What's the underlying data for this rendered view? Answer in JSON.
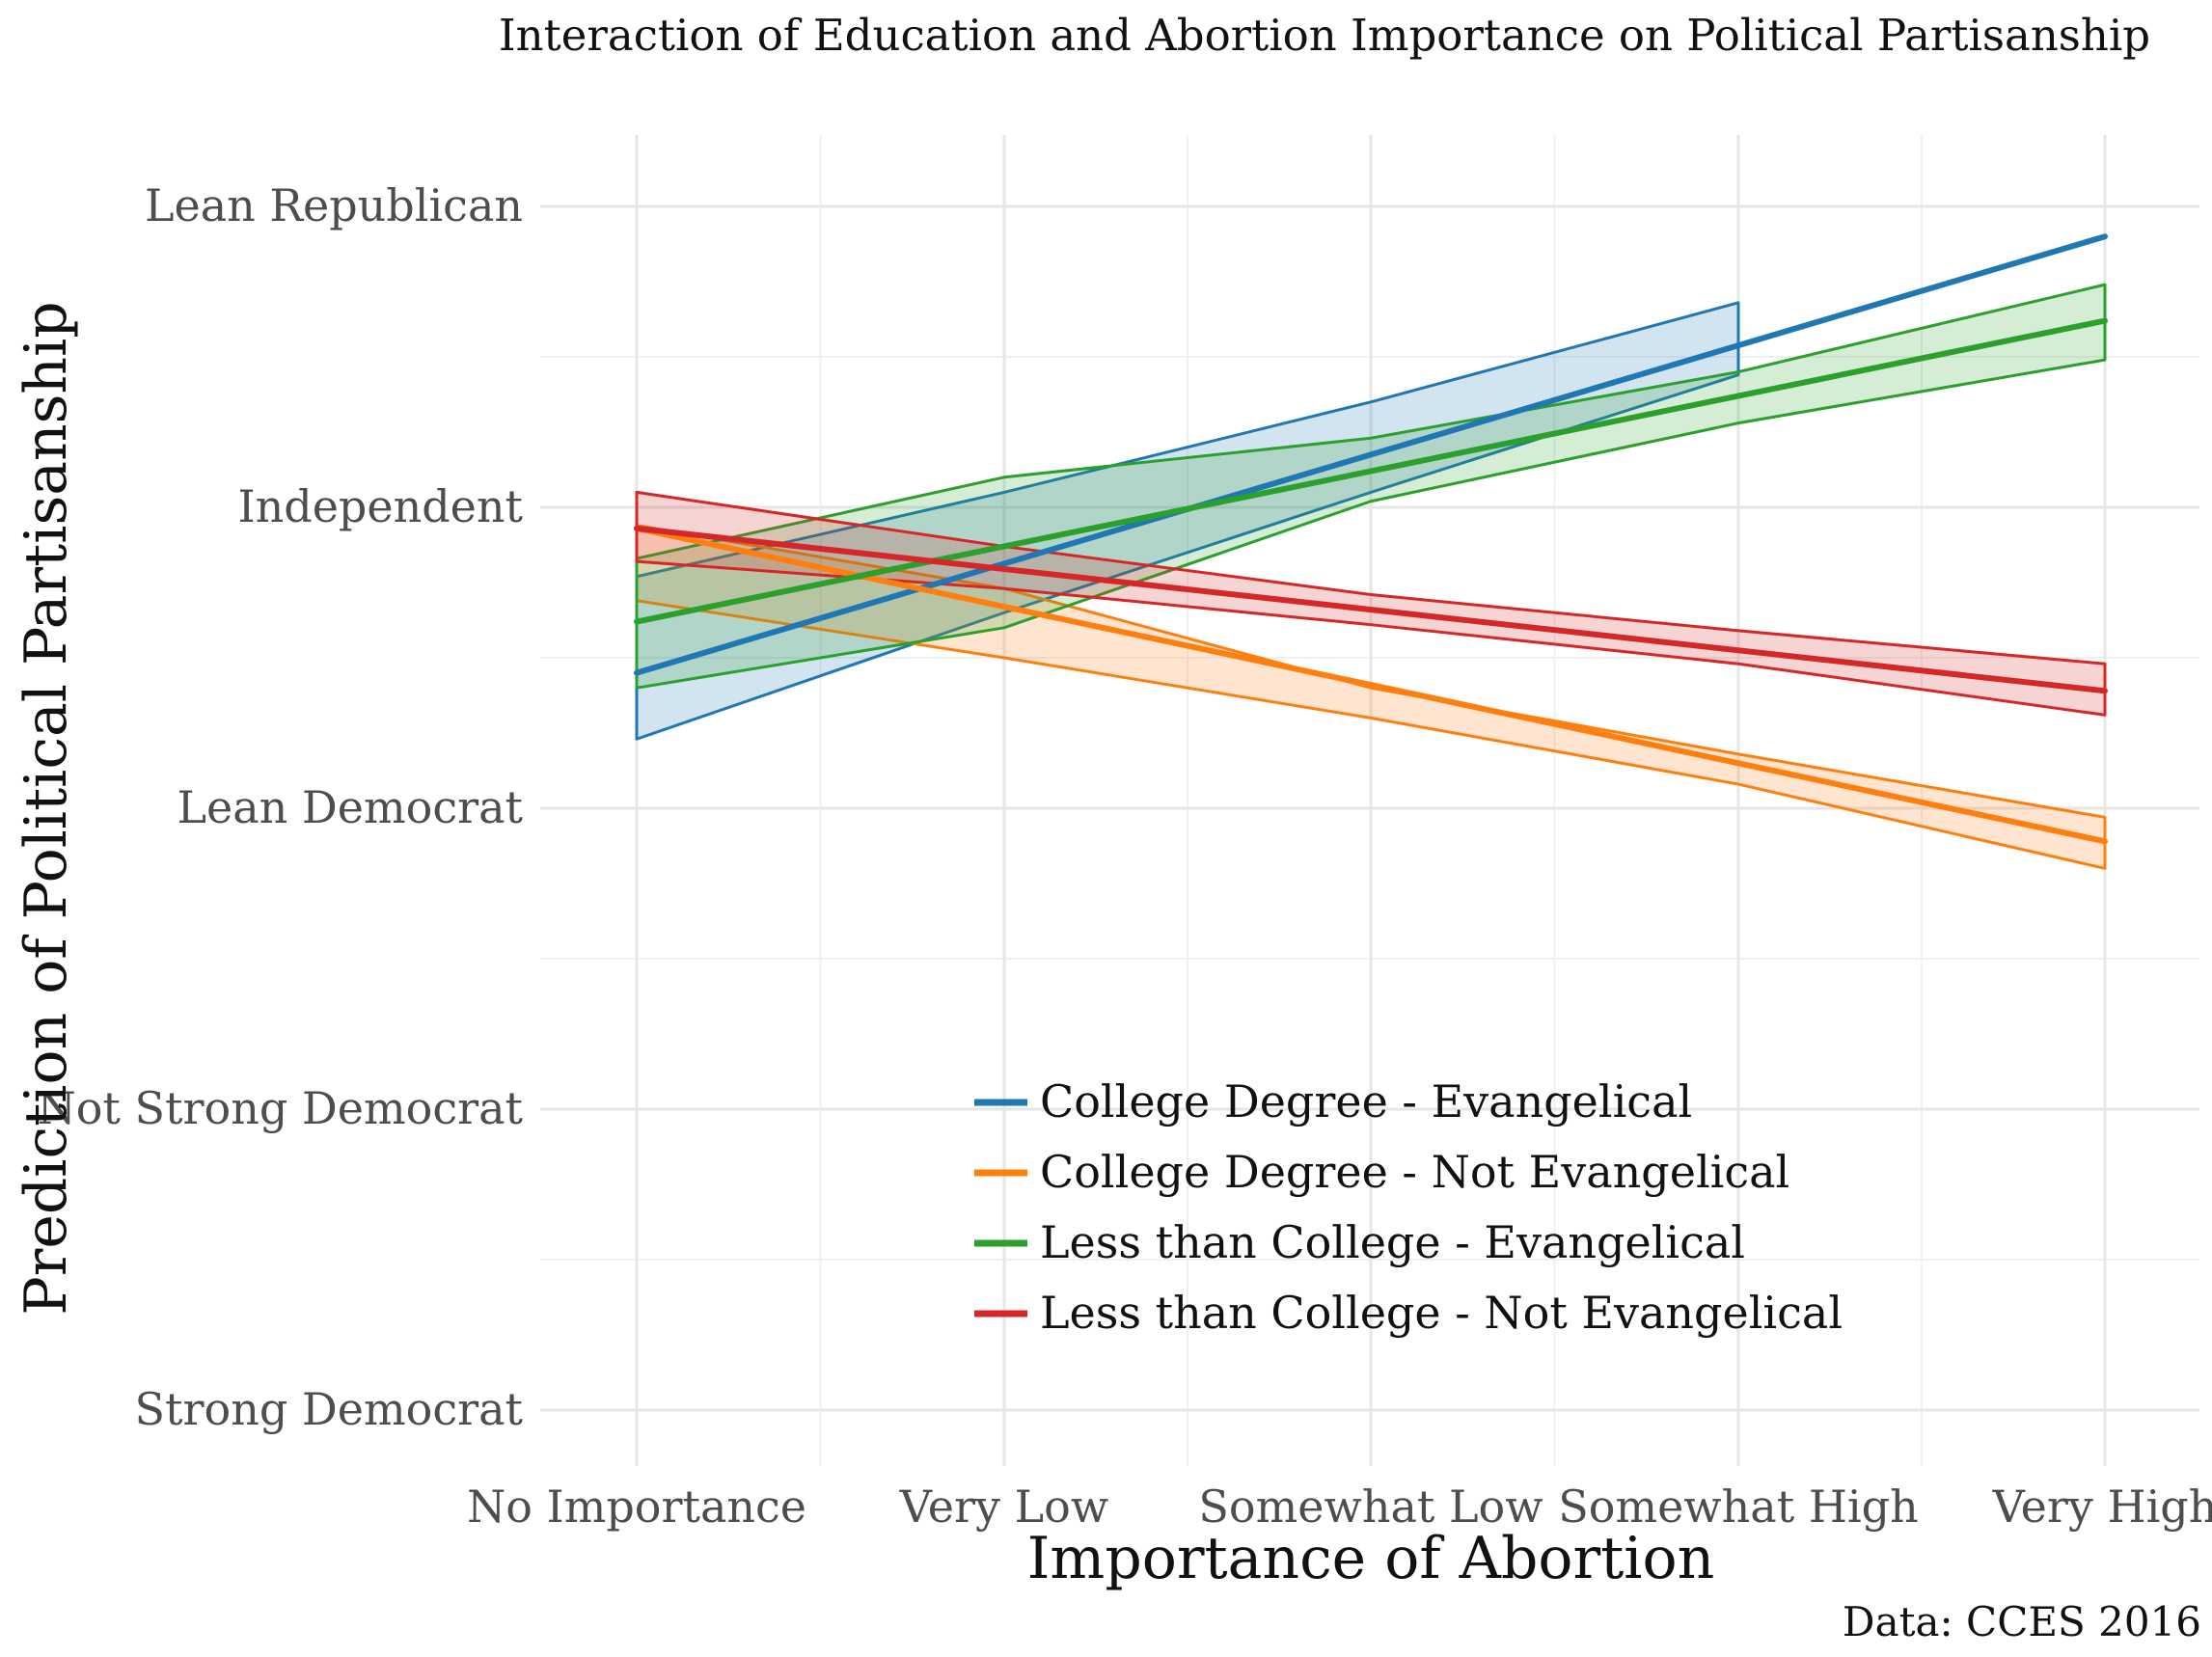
{
  "chart_data": {
    "type": "line",
    "title": "Interaction of Education and Abortion Importance on Political Partisanship",
    "xlabel": "Importance of Abortion",
    "ylabel": "Prediction of Political Partisanship",
    "caption": "Data: CCES 2016",
    "categories": [
      "No Importance",
      "Very Low",
      "Somewhat Low",
      "Somewhat High",
      "Very High"
    ],
    "y_ticks": [
      {
        "value": 1,
        "label": "Strong Democrat"
      },
      {
        "value": 2,
        "label": "Not Strong Democrat"
      },
      {
        "value": 3,
        "label": "Lean Democrat"
      },
      {
        "value": 4,
        "label": "Independent"
      },
      {
        "value": 5,
        "label": "Lean Republican"
      }
    ],
    "ylim": [
      0.8,
      5.5
    ],
    "grid": true,
    "legend_position": "bottom-center",
    "series": [
      {
        "name": "College Degree - Evangelical",
        "color": "#1f77b4",
        "fit": [
          3.45,
          null,
          null,
          null,
          4.9
        ],
        "ribbon_lower": [
          3.23,
          3.65,
          4.05,
          4.44,
          null
        ],
        "ribbon_upper": [
          3.77,
          4.05,
          4.35,
          4.68,
          null
        ]
      },
      {
        "name": "College Degree - Not Evangelical",
        "color": "#ff7f0e",
        "fit": [
          3.93,
          null,
          null,
          null,
          2.89
        ],
        "ribbon_lower": [
          3.69,
          3.5,
          3.3,
          3.08,
          2.8
        ],
        "ribbon_upper": [
          3.94,
          3.73,
          3.4,
          3.18,
          2.97
        ]
      },
      {
        "name": "Less than College - Evangelical",
        "color": "#2ca02c",
        "fit": [
          3.62,
          null,
          null,
          null,
          4.62
        ],
        "ribbon_lower": [
          3.4,
          3.6,
          4.02,
          4.28,
          4.49
        ],
        "ribbon_upper": [
          3.83,
          4.1,
          4.23,
          4.45,
          4.74
        ]
      },
      {
        "name": "Less than College - Not Evangelical",
        "color": "#d62728",
        "fit": [
          3.93,
          null,
          null,
          null,
          3.39
        ],
        "ribbon_lower": [
          3.82,
          3.73,
          3.61,
          3.48,
          3.31
        ],
        "ribbon_upper": [
          4.05,
          3.87,
          3.71,
          3.59,
          3.48
        ]
      }
    ]
  }
}
